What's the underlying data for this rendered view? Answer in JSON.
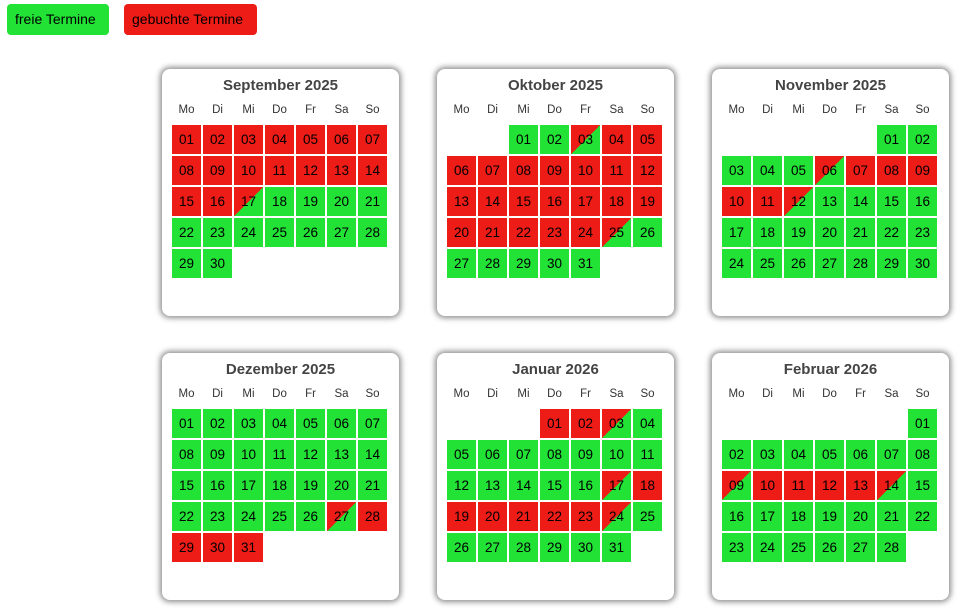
{
  "legend": {
    "free_label": "freie Termine",
    "booked_label": "gebuchte Termine"
  },
  "colors": {
    "free": "#22e236",
    "booked": "#ee1c16"
  },
  "weekdays": [
    "Mo",
    "Di",
    "Mi",
    "Do",
    "Fr",
    "Sa",
    "So"
  ],
  "calendars": [
    {
      "title": "September 2025",
      "offset": 0,
      "days": 30,
      "booked": [
        1,
        2,
        3,
        4,
        5,
        6,
        7,
        8,
        9,
        10,
        11,
        12,
        13,
        14,
        15,
        16
      ],
      "split": [
        17
      ]
    },
    {
      "title": "Oktober 2025",
      "offset": 2,
      "days": 31,
      "booked": [
        4,
        5,
        6,
        7,
        8,
        9,
        10,
        11,
        12,
        13,
        14,
        15,
        16,
        17,
        18,
        19,
        20,
        21,
        22,
        23,
        24
      ],
      "split": [
        3,
        25
      ]
    },
    {
      "title": "November 2025",
      "offset": 5,
      "days": 30,
      "booked": [
        7,
        8,
        9,
        10,
        11
      ],
      "split": [
        6,
        12
      ]
    },
    {
      "title": "Dezember 2025",
      "offset": 0,
      "days": 31,
      "booked": [
        28,
        29,
        30,
        31
      ],
      "split": [
        27
      ]
    },
    {
      "title": "Januar 2026",
      "offset": 3,
      "days": 31,
      "booked": [
        1,
        2,
        18,
        19,
        20,
        21,
        22,
        23
      ],
      "split": [
        3,
        17,
        24
      ]
    },
    {
      "title": "Februar 2026",
      "offset": 6,
      "days": 28,
      "booked": [
        10,
        11,
        12,
        13
      ],
      "split": [
        9,
        14
      ]
    }
  ]
}
